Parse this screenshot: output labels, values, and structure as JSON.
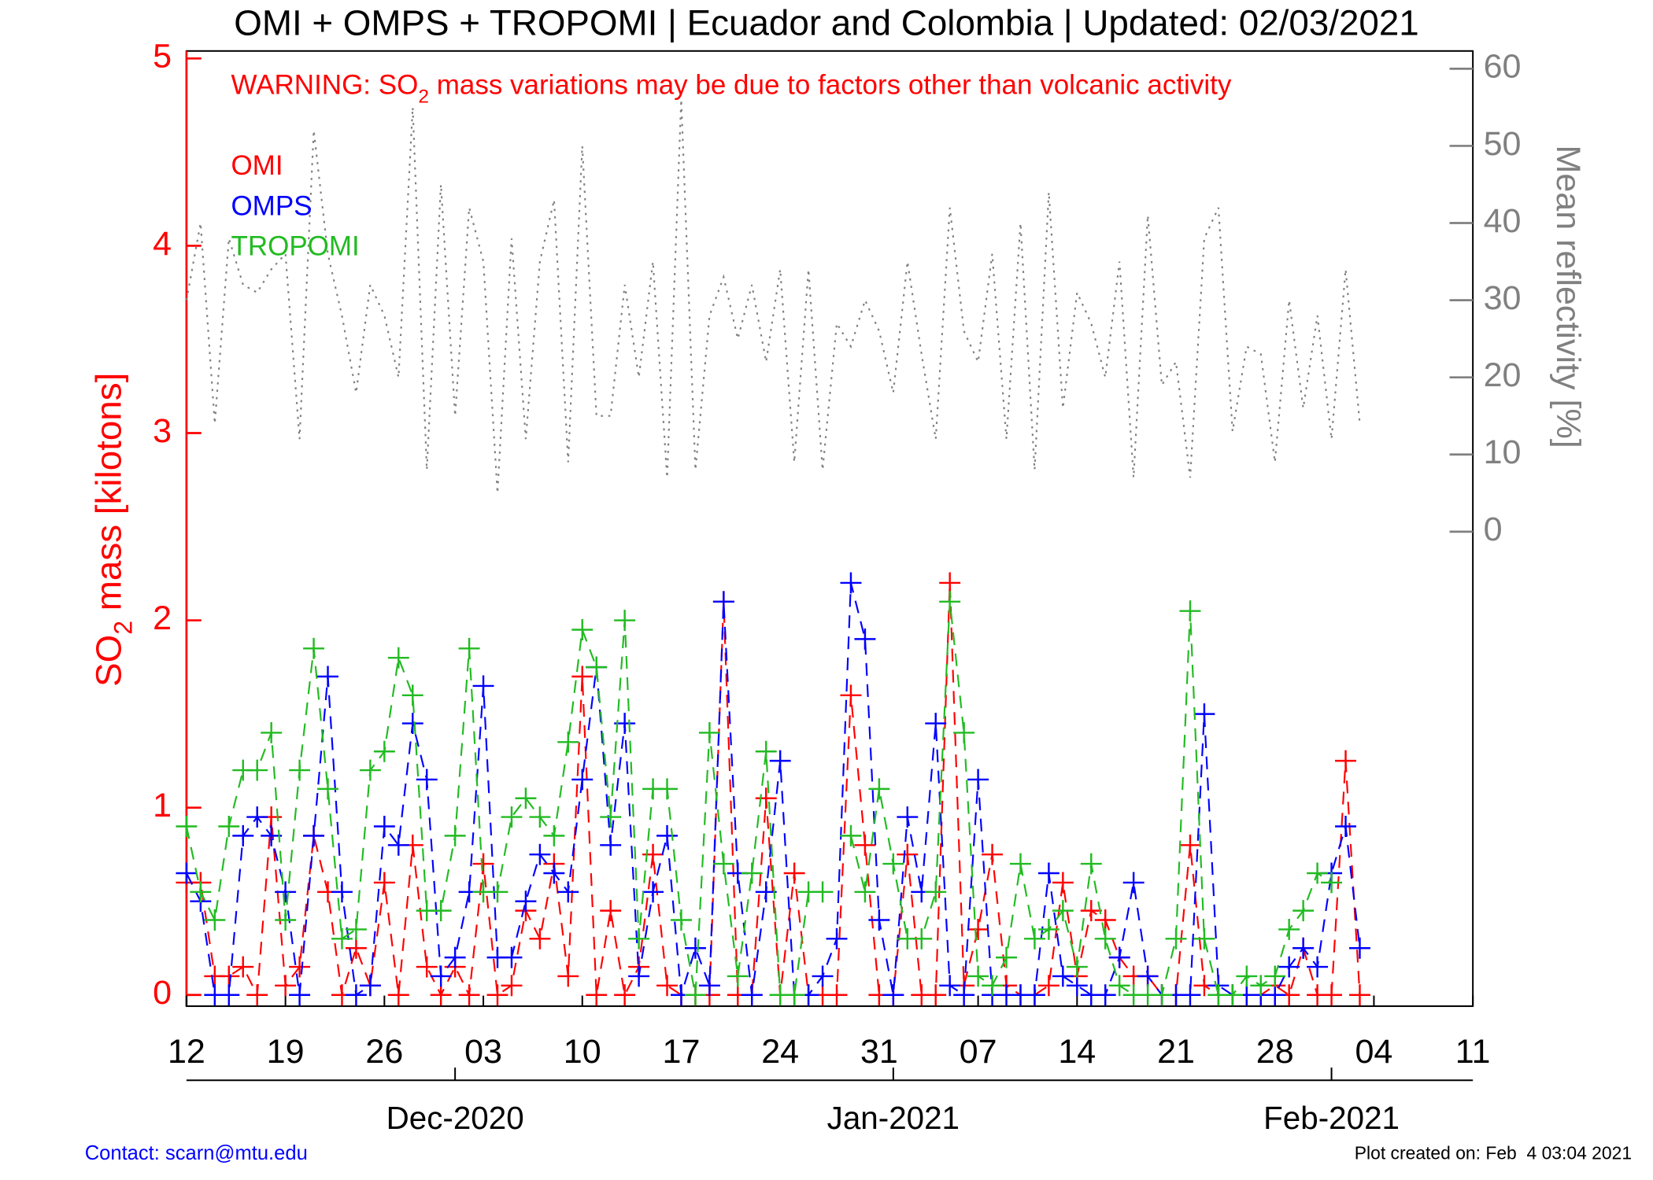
{
  "chart_data": {
    "type": "line",
    "title": "OMI + OMPS + TROPOMI | Ecuador and Colombia | Updated: 02/03/2021",
    "warning": [
      "WARNING: SO",
      "2",
      " mass variations may be due to factors other than volcanic activity"
    ],
    "ylabel": [
      "SO",
      "2",
      " mass [kilotons]"
    ],
    "y2label": "Mean reflectivity [%]",
    "footer_left": "Contact: scarn@mtu.edu",
    "footer_right": "Plot created on: Feb  4 03:04 2021",
    "xlim": [
      "2020-11-12",
      "2021-02-11"
    ],
    "xticks": [
      {
        "value": "2020-11-12",
        "label": "12"
      },
      {
        "value": "2020-11-19",
        "label": "19"
      },
      {
        "value": "2020-11-26",
        "label": "26"
      },
      {
        "value": "2020-12-03",
        "label": "03"
      },
      {
        "value": "2020-12-10",
        "label": "10"
      },
      {
        "value": "2020-12-17",
        "label": "17"
      },
      {
        "value": "2020-12-24",
        "label": "24"
      },
      {
        "value": "2020-12-31",
        "label": "31"
      },
      {
        "value": "2021-01-07",
        "label": "07"
      },
      {
        "value": "2021-01-14",
        "label": "14"
      },
      {
        "value": "2021-01-21",
        "label": "21"
      },
      {
        "value": "2021-01-28",
        "label": "28"
      },
      {
        "value": "2021-02-04",
        "label": "04"
      },
      {
        "value": "2021-02-11",
        "label": "11"
      }
    ],
    "month_ticks": [
      {
        "value": "2020-12-01",
        "label": "Dec-2020"
      },
      {
        "value": "2021-01-01",
        "label": "Jan-2021"
      },
      {
        "value": "2021-02-01",
        "label": "Feb-2021"
      }
    ],
    "ylim": [
      -0.06,
      5.04
    ],
    "yticks": [
      0,
      1,
      2,
      3,
      4,
      5
    ],
    "y2lim": [
      -61.5,
      62.3
    ],
    "y2ticks": [
      0,
      10,
      20,
      30,
      40,
      50,
      60
    ],
    "x": [
      "2020-11-12",
      "2020-11-13",
      "2020-11-14",
      "2020-11-15",
      "2020-11-16",
      "2020-11-17",
      "2020-11-18",
      "2020-11-19",
      "2020-11-20",
      "2020-11-21",
      "2020-11-22",
      "2020-11-23",
      "2020-11-24",
      "2020-11-25",
      "2020-11-26",
      "2020-11-27",
      "2020-11-28",
      "2020-11-29",
      "2020-11-30",
      "2020-12-01",
      "2020-12-02",
      "2020-12-03",
      "2020-12-04",
      "2020-12-05",
      "2020-12-06",
      "2020-12-07",
      "2020-12-08",
      "2020-12-09",
      "2020-12-10",
      "2020-12-11",
      "2020-12-12",
      "2020-12-13",
      "2020-12-14",
      "2020-12-15",
      "2020-12-16",
      "2020-12-17",
      "2020-12-18",
      "2020-12-19",
      "2020-12-20",
      "2020-12-21",
      "2020-12-22",
      "2020-12-23",
      "2020-12-24",
      "2020-12-25",
      "2020-12-26",
      "2020-12-27",
      "2020-12-28",
      "2020-12-29",
      "2020-12-30",
      "2020-12-31",
      "2021-01-01",
      "2021-01-02",
      "2021-01-03",
      "2021-01-04",
      "2021-01-05",
      "2021-01-06",
      "2021-01-07",
      "2021-01-08",
      "2021-01-09",
      "2021-01-10",
      "2021-01-11",
      "2021-01-12",
      "2021-01-13",
      "2021-01-14",
      "2021-01-15",
      "2021-01-16",
      "2021-01-17",
      "2021-01-18",
      "2021-01-19",
      "2021-01-20",
      "2021-01-21",
      "2021-01-22",
      "2021-01-23",
      "2021-01-24",
      "2021-01-25",
      "2021-01-26",
      "2021-01-27",
      "2021-01-28",
      "2021-01-29",
      "2021-01-30",
      "2021-01-31",
      "2021-02-01",
      "2021-02-02",
      "2021-02-03"
    ],
    "series": [
      {
        "name": "OMI",
        "color": "#ff0000",
        "style": "dashed",
        "marker": "+",
        "axis": "y",
        "values": [
          0.6,
          0.6,
          0.1,
          0.1,
          0.15,
          0.0,
          0.95,
          0.05,
          0.15,
          0.85,
          0.55,
          0.0,
          0.25,
          0.05,
          0.6,
          0.0,
          0.8,
          0.15,
          0.0,
          0.15,
          0.0,
          0.7,
          0.0,
          0.05,
          0.45,
          0.3,
          0.7,
          0.1,
          1.7,
          0.0,
          0.45,
          0.0,
          0.15,
          0.75,
          0.05,
          0.0,
          0.0,
          0.0,
          2.1,
          0.0,
          0.0,
          1.05,
          0.0,
          0.65,
          0.0,
          0.0,
          0.0,
          1.6,
          0.8,
          0.0,
          0.0,
          0.75,
          0.0,
          0.0,
          2.2,
          0.05,
          0.35,
          0.75,
          0.05,
          0.0,
          0.0,
          0.05,
          0.6,
          0.1,
          0.45,
          0.4,
          0.2,
          0.1,
          0.1,
          0.0,
          0.0,
          0.8,
          0.05,
          0.0,
          0.0,
          0.0,
          0.0,
          0.05,
          0.0,
          0.25,
          0.0,
          0.0,
          1.25,
          0.0
        ]
      },
      {
        "name": "OMPS",
        "color": "#0000ff",
        "style": "dashed",
        "marker": "+",
        "axis": "y",
        "values": [
          0.65,
          0.5,
          0.0,
          0.0,
          0.85,
          0.95,
          0.85,
          0.55,
          0.0,
          0.85,
          1.7,
          0.55,
          0.0,
          0.05,
          0.9,
          0.8,
          1.45,
          1.15,
          0.1,
          0.2,
          0.55,
          1.65,
          0.2,
          0.2,
          0.5,
          0.75,
          0.65,
          0.55,
          1.15,
          1.75,
          0.8,
          1.45,
          0.1,
          0.55,
          0.85,
          0.0,
          0.25,
          0.05,
          2.1,
          0.65,
          0.0,
          0.55,
          1.25,
          0.0,
          0.0,
          0.1,
          0.3,
          2.2,
          1.9,
          0.4,
          0.0,
          0.95,
          0.55,
          1.45,
          0.05,
          0.0,
          1.15,
          0.0,
          0.0,
          0.0,
          0.0,
          0.65,
          0.1,
          0.05,
          0.0,
          0.0,
          0.2,
          0.6,
          0.1,
          0.0,
          0.0,
          0.0,
          1.5,
          0.05,
          0.0,
          0.0,
          0.0,
          0.0,
          0.15,
          0.25,
          0.15,
          0.65,
          0.9,
          0.25
        ]
      },
      {
        "name": "TROPOMI",
        "color": "#22bb22",
        "style": "dashed",
        "marker": "+",
        "axis": "y",
        "values": [
          0.9,
          0.55,
          0.4,
          0.9,
          1.2,
          1.2,
          1.4,
          0.4,
          1.2,
          1.85,
          1.1,
          0.3,
          0.35,
          1.2,
          1.3,
          1.8,
          1.6,
          0.45,
          0.45,
          0.85,
          1.85,
          0.55,
          0.55,
          0.95,
          1.05,
          0.95,
          0.85,
          1.35,
          1.95,
          1.75,
          0.95,
          2.0,
          0.3,
          1.1,
          1.1,
          0.4,
          0.0,
          1.4,
          0.7,
          0.1,
          0.65,
          1.3,
          0.0,
          0.0,
          0.55,
          0.55,
          null,
          0.85,
          0.55,
          1.1,
          0.7,
          0.3,
          0.3,
          0.55,
          2.1,
          1.4,
          0.1,
          0.05,
          0.2,
          0.7,
          0.3,
          0.35,
          0.45,
          0.15,
          0.7,
          0.3,
          0.05,
          0.0,
          0.0,
          0.0,
          0.3,
          2.05,
          0.3,
          0.0,
          0.0,
          0.1,
          0.05,
          0.1,
          0.35,
          0.45,
          0.65,
          0.6,
          null,
          null
        ]
      },
      {
        "color": "#808080",
        "style": "dotted",
        "axis": "y2",
        "values": [
          30,
          40,
          14,
          38,
          32,
          31,
          34,
          36,
          12,
          52,
          36,
          28,
          18,
          32,
          28,
          20,
          55,
          8,
          45,
          15,
          42,
          35,
          5,
          38,
          12,
          35,
          43,
          9,
          50,
          15,
          15,
          32,
          20,
          35,
          7,
          56,
          8,
          28,
          33,
          25,
          32,
          22,
          34,
          9,
          34,
          8,
          27,
          24,
          30,
          26,
          18,
          35,
          23,
          12,
          42,
          26,
          22,
          36,
          12,
          40,
          8,
          44,
          16,
          31,
          27,
          20,
          35,
          7,
          41,
          19,
          22,
          7,
          38,
          42,
          13,
          24,
          23,
          9,
          30,
          16,
          28,
          12,
          34,
          14
        ]
      }
    ]
  }
}
